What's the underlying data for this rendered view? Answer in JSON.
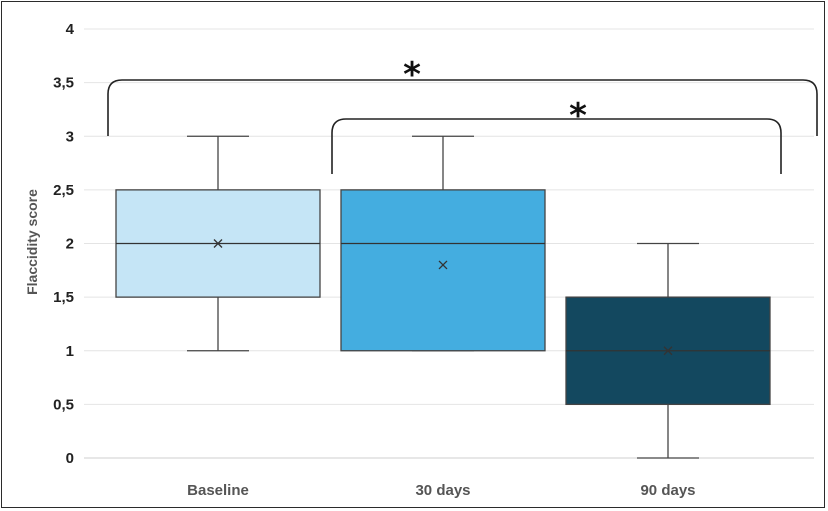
{
  "chart_data": {
    "type": "box",
    "title": "",
    "xlabel": "",
    "ylabel": "Flaccidity score",
    "ylim": [
      0,
      4
    ],
    "yticks": [
      {
        "value": 0,
        "label": "0"
      },
      {
        "value": 0.5,
        "label": "0,5"
      },
      {
        "value": 1,
        "label": "1"
      },
      {
        "value": 1.5,
        "label": "1,5"
      },
      {
        "value": 2,
        "label": "2"
      },
      {
        "value": 2.5,
        "label": "2,5"
      },
      {
        "value": 3,
        "label": "3"
      },
      {
        "value": 3.5,
        "label": "3,5"
      },
      {
        "value": 4,
        "label": "4"
      }
    ],
    "grid": true,
    "legend": "none",
    "categories": [
      "Baseline",
      "30 days",
      "90 days"
    ],
    "boxes": [
      {
        "category": "Baseline",
        "min": 1,
        "q1": 1.5,
        "median": 2,
        "q3": 2.5,
        "max": 3,
        "mean": 2,
        "color": "#c5e5f6"
      },
      {
        "category": "30 days",
        "min": 1,
        "q1": 1,
        "median": 2,
        "q3": 2.5,
        "max": 3,
        "mean": 1.8,
        "color": "#44ade0"
      },
      {
        "category": "90 days",
        "min": 0,
        "q1": 0.5,
        "median": 1,
        "q3": 1.5,
        "max": 2,
        "mean": 1,
        "color": "#13485f"
      }
    ],
    "significance": [
      {
        "from": "Baseline",
        "to": "90 days",
        "label": "*"
      },
      {
        "from": "30 days",
        "to": "90 days",
        "label": "*"
      }
    ]
  }
}
